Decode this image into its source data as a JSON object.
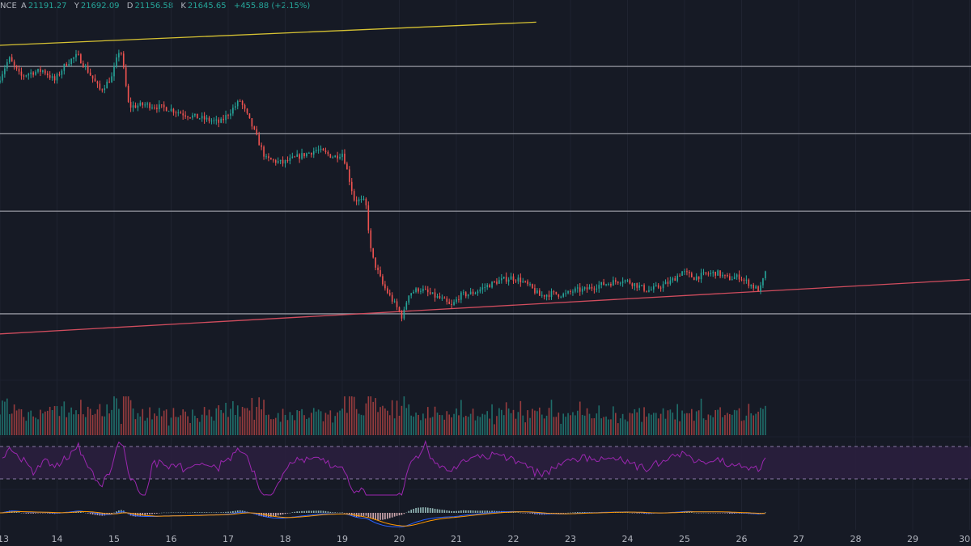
{
  "header": {
    "exchange_fragment": "NCE",
    "open_label": "A",
    "open_value": "21191.27",
    "high_label": "Y",
    "high_value": "21692.09",
    "low_label": "D",
    "low_value": "21156.58",
    "close_label": "K",
    "close_value": "21645.65",
    "change": "+455.88 (+2.15%)"
  },
  "colors": {
    "background": "#161a25",
    "up": "#26a69a",
    "down": "#ef5350",
    "grid": "#1f2330",
    "horizontal_level": "#9598a1",
    "upper_trendline": "#d6c233",
    "lower_trendline": "#d14d5e",
    "rsi_line": "#9c27b0",
    "rsi_band": "#2a1f3e",
    "macd_line": "#2962ff",
    "signal_line": "#ff9800",
    "axis_text": "#b2b5be"
  },
  "chart_data": {
    "type": "candlestick",
    "x_axis": {
      "tick_labels": [
        "13",
        "14",
        "15",
        "16",
        "17",
        "18",
        "19",
        "20",
        "21",
        "22",
        "23",
        "24",
        "25",
        "26",
        "27",
        "28",
        "29",
        "30"
      ],
      "range": [
        13,
        30
      ]
    },
    "y_axis": {
      "range": [
        21000,
        24700
      ],
      "labels_visible": false
    },
    "price_path": [
      [
        13.0,
        23960
      ],
      [
        13.2,
        24200
      ],
      [
        13.4,
        24020
      ],
      [
        13.6,
        24060
      ],
      [
        13.8,
        24080
      ],
      [
        14.0,
        23980
      ],
      [
        14.2,
        24150
      ],
      [
        14.4,
        24230
      ],
      [
        14.6,
        24060
      ],
      [
        14.8,
        23880
      ],
      [
        15.0,
        24010
      ],
      [
        15.15,
        24320
      ],
      [
        15.3,
        23720
      ],
      [
        15.6,
        23740
      ],
      [
        16.0,
        23700
      ],
      [
        16.3,
        23640
      ],
      [
        16.6,
        23600
      ],
      [
        16.9,
        23560
      ],
      [
        17.25,
        23780
      ],
      [
        17.45,
        23540
      ],
      [
        17.7,
        23200
      ],
      [
        18.0,
        23160
      ],
      [
        18.3,
        23230
      ],
      [
        18.6,
        23290
      ],
      [
        18.9,
        23220
      ],
      [
        19.05,
        23260
      ],
      [
        19.25,
        22800
      ],
      [
        19.45,
        22770
      ],
      [
        19.55,
        22250
      ],
      [
        19.75,
        21950
      ],
      [
        20.0,
        21720
      ],
      [
        20.1,
        21620
      ],
      [
        20.2,
        21860
      ],
      [
        20.4,
        21910
      ],
      [
        20.6,
        21850
      ],
      [
        20.8,
        21800
      ],
      [
        20.95,
        21730
      ],
      [
        21.1,
        21840
      ],
      [
        21.35,
        21870
      ],
      [
        21.55,
        21930
      ],
      [
        21.75,
        21980
      ],
      [
        22.0,
        22020
      ],
      [
        22.15,
        22000
      ],
      [
        22.35,
        21920
      ],
      [
        22.5,
        21840
      ],
      [
        22.7,
        21860
      ],
      [
        22.95,
        21850
      ],
      [
        23.1,
        21890
      ],
      [
        23.3,
        21900
      ],
      [
        23.5,
        21940
      ],
      [
        23.75,
        21970
      ],
      [
        23.95,
        22000
      ],
      [
        24.15,
        21960
      ],
      [
        24.4,
        21890
      ],
      [
        24.6,
        21930
      ],
      [
        24.8,
        21980
      ],
      [
        25.0,
        22080
      ],
      [
        25.2,
        22020
      ],
      [
        25.4,
        22050
      ],
      [
        25.6,
        22070
      ],
      [
        25.8,
        22010
      ],
      [
        26.0,
        22030
      ],
      [
        26.2,
        21950
      ],
      [
        26.32,
        21900
      ],
      [
        26.38,
        21920
      ],
      [
        26.45,
        22060
      ]
    ],
    "horizontal_levels": [
      24120,
      23450,
      22680,
      21660
    ],
    "trendlines": [
      {
        "name": "upper",
        "x": [
          13.0,
          22.4
        ],
        "y": [
          24330,
          24560
        ]
      },
      {
        "name": "lower",
        "x": [
          13.0,
          30.0
        ],
        "y": [
          21460,
          22000
        ]
      }
    ],
    "indicators": {
      "volume": {
        "shown": true
      },
      "rsi": {
        "shown": true,
        "band": [
          30,
          70
        ]
      },
      "macd": {
        "shown": true
      }
    }
  }
}
